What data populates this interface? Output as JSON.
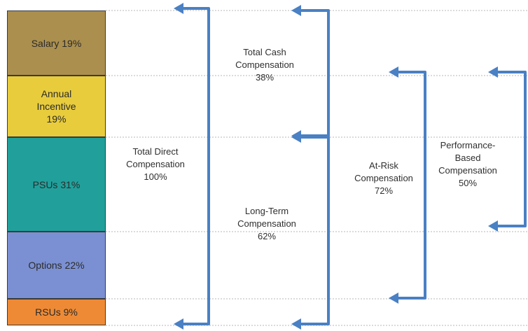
{
  "bar_segments": [
    {
      "label": "Salary 19%",
      "color": "#ab8f4e"
    },
    {
      "label": "Annual\nIncentive\n19%",
      "color": "#e8cc3c"
    },
    {
      "label": "PSUs 31%",
      "color": "#21a09b"
    },
    {
      "label": "Options 22%",
      "color": "#7b90d2"
    },
    {
      "label": "RSUs 9%",
      "color": "#ee8a35"
    }
  ],
  "groups": {
    "total_cash": {
      "name": "Total Cash\nCompensation",
      "pct": "38%"
    },
    "long_term": {
      "name": "Long-Term\nCompensation",
      "pct": "62%"
    },
    "total_direct": {
      "name": "Total Direct\nCompensation",
      "pct": "100%"
    },
    "at_risk": {
      "name": "At-Risk\nCompensation",
      "pct": "72%"
    },
    "performance_based": {
      "name": "Performance-\nBased\nCompensation",
      "pct": "50%"
    }
  },
  "colors": {
    "bracket": "#4a80c4",
    "gridline": "#b7b7b7"
  }
}
